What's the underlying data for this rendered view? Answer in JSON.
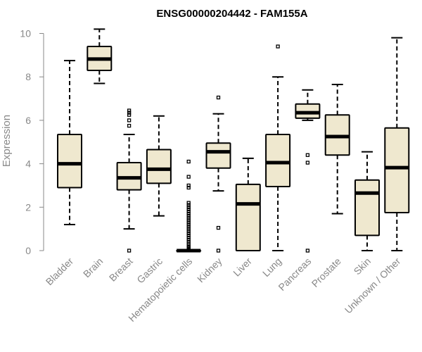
{
  "chart_data": {
    "type": "boxplot",
    "title": "ENSG00000204442 - FAM155A",
    "xlabel": "",
    "ylabel": "Expression",
    "ylim": [
      0,
      10.3
    ],
    "yticks": [
      0,
      2,
      4,
      6,
      8,
      10
    ],
    "box_fill": "#efe8cf",
    "categories": [
      "Bladder",
      "Brain",
      "Breast",
      "Gastric",
      "Hematopoietic cells",
      "Kidney",
      "Liver",
      "Lung",
      "Pancreas",
      "Prostate",
      "Skin",
      "Unknown / Other"
    ],
    "series": [
      {
        "name": "Bladder",
        "min": 1.2,
        "q1": 2.9,
        "median": 4.0,
        "q3": 5.35,
        "max": 8.75,
        "outliers": []
      },
      {
        "name": "Brain",
        "min": 7.7,
        "q1": 8.3,
        "median": 8.82,
        "q3": 9.4,
        "max": 10.2,
        "outliers": []
      },
      {
        "name": "Breast",
        "min": 1.0,
        "q1": 2.8,
        "median": 3.35,
        "q3": 4.05,
        "max": 5.35,
        "outliers": [
          0.0,
          5.75,
          6.0,
          6.25,
          6.35,
          6.45
        ]
      },
      {
        "name": "Gastric",
        "min": 1.6,
        "q1": 3.1,
        "median": 3.75,
        "q3": 4.65,
        "max": 6.2,
        "outliers": []
      },
      {
        "name": "Hematopoietic cells",
        "min": 0.0,
        "q1": 0.0,
        "median": 0.0,
        "q3": 0.0,
        "max": 0.0,
        "outliers": [
          0.05,
          0.1,
          0.15,
          0.2,
          0.3,
          0.4,
          0.5,
          0.6,
          0.7,
          0.8,
          0.9,
          1.0,
          1.1,
          1.2,
          1.3,
          1.4,
          1.5,
          1.6,
          1.7,
          1.8,
          1.9,
          2.0,
          2.1,
          2.2,
          2.9,
          3.0,
          3.4,
          4.1
        ]
      },
      {
        "name": "Kidney",
        "min": 2.75,
        "q1": 3.8,
        "median": 4.55,
        "q3": 4.95,
        "max": 6.3,
        "outliers": [
          0.0,
          1.05,
          7.05
        ]
      },
      {
        "name": "Liver",
        "min": 0.0,
        "q1": 0.0,
        "median": 2.15,
        "q3": 3.05,
        "max": 4.25,
        "outliers": []
      },
      {
        "name": "Lung",
        "min": 0.0,
        "q1": 2.95,
        "median": 4.05,
        "q3": 5.35,
        "max": 8.0,
        "outliers": [
          9.4
        ]
      },
      {
        "name": "Pancreas",
        "min": 6.0,
        "q1": 6.1,
        "median": 6.35,
        "q3": 6.75,
        "max": 7.4,
        "outliers": [
          0.0,
          4.05,
          4.4
        ]
      },
      {
        "name": "Prostate",
        "min": 1.7,
        "q1": 4.4,
        "median": 5.25,
        "q3": 6.25,
        "max": 7.65,
        "outliers": []
      },
      {
        "name": "Skin",
        "min": 0.0,
        "q1": 0.7,
        "median": 2.65,
        "q3": 3.25,
        "max": 4.55,
        "outliers": []
      },
      {
        "name": "Unknown / Other",
        "min": 0.0,
        "q1": 1.75,
        "median": 3.82,
        "q3": 5.65,
        "max": 9.8,
        "outliers": []
      }
    ]
  }
}
